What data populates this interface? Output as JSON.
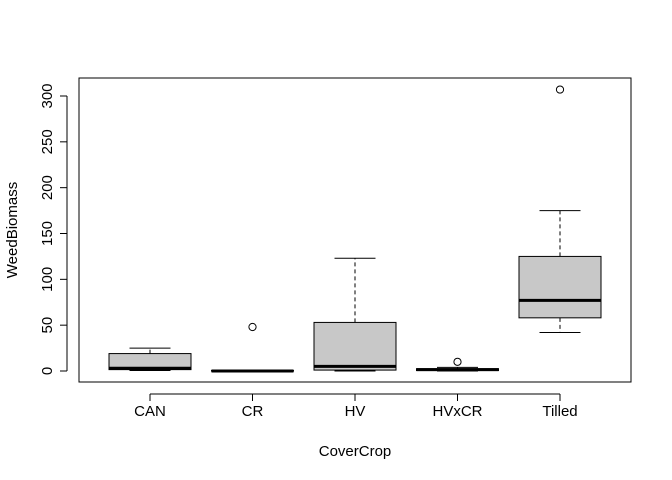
{
  "chart_data": {
    "type": "box",
    "title": "",
    "xlabel": "CoverCrop",
    "ylabel": "WeedBiomass",
    "ylim": [
      -12,
      322
    ],
    "yticks": [
      0,
      50,
      100,
      150,
      200,
      250,
      300
    ],
    "categories": [
      "CAN",
      "CR",
      "HV",
      "HVxCR",
      "Tilled"
    ],
    "boxes": [
      {
        "category": "CAN",
        "whisker_low": 0.5,
        "q1": 1.5,
        "median": 3,
        "q3": 19,
        "whisker_high": 25,
        "outliers": []
      },
      {
        "category": "CR",
        "whisker_low": 0,
        "q1": 0,
        "median": 0,
        "q3": 0.5,
        "whisker_high": 0.5,
        "outliers": [
          48
        ]
      },
      {
        "category": "HV",
        "whisker_low": 0,
        "q1": 1,
        "median": 5,
        "q3": 53,
        "whisker_high": 123,
        "outliers": []
      },
      {
        "category": "HVxCR",
        "whisker_low": 0,
        "q1": 0.5,
        "median": 1.5,
        "q3": 2.5,
        "whisker_high": 4,
        "outliers": [
          10
        ]
      },
      {
        "category": "Tilled",
        "whisker_low": 42,
        "q1": 58,
        "median": 77,
        "q3": 125,
        "whisker_high": 175,
        "outliers": [
          307
        ]
      }
    ],
    "box_fill": "#c8c8c8",
    "grid": false,
    "legend": "none"
  }
}
